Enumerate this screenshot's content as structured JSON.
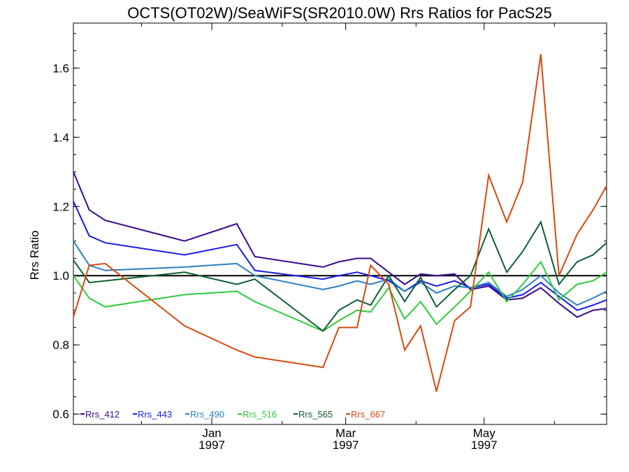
{
  "chart_data": {
    "type": "line",
    "title": "OCTS(OT02W)/SeaWiFS(SR2010.0W)  Rrs Ratios for PacS25",
    "xlabel": "",
    "ylabel": "Rrs Ratio",
    "ylim": [
      0.57,
      1.73
    ],
    "xlim": [
      "1996-11-01",
      "1997-06-24"
    ],
    "yticks": [
      "0.6",
      "0.8",
      "1.0",
      "1.2",
      "1.4",
      "1.6"
    ],
    "xticks": [
      {
        "date": "1997-01-01",
        "month": "Jan",
        "year": "1997"
      },
      {
        "date": "1997-03-01",
        "month": "Mar",
        "year": "1997"
      },
      {
        "date": "1997-05-01",
        "month": "May",
        "year": "1997"
      }
    ],
    "reference_line": 1.0,
    "grid": false,
    "legend_position": "bottom-left",
    "x": [
      "1996-11-01",
      "1996-11-08",
      "1996-11-15",
      "1996-12-20",
      "1997-01-12",
      "1997-01-20",
      "1997-02-19",
      "1997-02-26",
      "1997-03-06",
      "1997-03-12",
      "1997-03-20",
      "1997-03-27",
      "1997-04-03",
      "1997-04-10",
      "1997-04-18",
      "1997-04-25",
      "1997-05-03",
      "1997-05-11",
      "1997-05-18",
      "1997-05-26",
      "1997-06-03",
      "1997-06-11",
      "1997-06-18",
      "1997-06-24"
    ],
    "series": [
      {
        "name": "Rrs_412",
        "color": "#3a0a8c",
        "values": [
          1.3,
          1.19,
          1.16,
          1.1,
          1.15,
          1.055,
          1.025,
          1.04,
          1.05,
          1.05,
          1.01,
          0.975,
          1.005,
          1.0,
          1.005,
          0.96,
          0.97,
          0.93,
          0.935,
          0.965,
          0.92,
          0.88,
          0.9,
          0.905
        ]
      },
      {
        "name": "Rrs_443",
        "color": "#1a1aee",
        "values": [
          1.215,
          1.115,
          1.095,
          1.06,
          1.09,
          1.015,
          0.99,
          1.0,
          1.01,
          1.0,
          0.985,
          0.955,
          0.985,
          0.97,
          0.985,
          0.965,
          0.975,
          0.935,
          0.945,
          0.98,
          0.94,
          0.9,
          0.915,
          0.93
        ]
      },
      {
        "name": "Rrs_490",
        "color": "#2b7fc4",
        "values": [
          1.1,
          1.03,
          1.015,
          1.025,
          1.035,
          1.0,
          0.96,
          0.97,
          0.985,
          0.975,
          0.99,
          0.955,
          0.98,
          0.95,
          0.97,
          0.965,
          0.98,
          0.94,
          0.96,
          1.0,
          0.95,
          0.915,
          0.935,
          0.955
        ]
      },
      {
        "name": "Rrs_516",
        "color": "#2ecc3a",
        "values": [
          1.0,
          0.935,
          0.91,
          0.945,
          0.955,
          0.925,
          0.84,
          0.87,
          0.9,
          0.895,
          0.965,
          0.875,
          0.925,
          0.86,
          0.91,
          0.955,
          1.01,
          0.925,
          0.975,
          1.04,
          0.93,
          0.975,
          0.985,
          1.01
        ]
      },
      {
        "name": "Rrs_565",
        "color": "#0e5e33",
        "values": [
          1.045,
          0.98,
          0.985,
          1.01,
          0.975,
          0.99,
          0.84,
          0.9,
          0.93,
          0.915,
          1.0,
          0.925,
          0.995,
          0.91,
          0.96,
          1.0,
          1.135,
          1.01,
          1.07,
          1.155,
          0.975,
          1.04,
          1.06,
          1.095
        ]
      },
      {
        "name": "Rrs_667",
        "color": "#d9480f",
        "values": [
          0.88,
          1.03,
          1.035,
          0.855,
          0.785,
          0.765,
          0.735,
          0.85,
          0.85,
          1.03,
          0.975,
          0.785,
          0.855,
          0.665,
          0.87,
          0.91,
          1.29,
          1.155,
          1.27,
          1.64,
          1.0,
          1.12,
          1.19,
          1.26
        ]
      }
    ]
  }
}
